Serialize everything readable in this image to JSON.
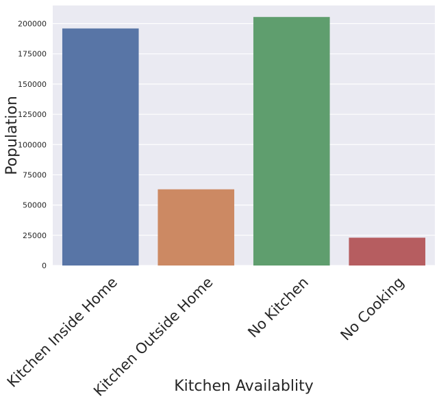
{
  "chart_data": {
    "type": "bar",
    "categories": [
      "Kitchen Inside Home",
      "Kitchen Outside Home",
      "No Kitchen",
      "No Cooking"
    ],
    "values": [
      196000,
      63000,
      205500,
      23000
    ],
    "colors": [
      "#5875a6",
      "#cc8963",
      "#5f9e6e",
      "#b65d60"
    ],
    "xlabel": "Kitchen Availablity",
    "ylabel": "Population",
    "ylim": [
      0,
      215000
    ],
    "yticks": [
      0,
      25000,
      50000,
      75000,
      100000,
      125000,
      150000,
      175000,
      200000
    ],
    "ytick_labels": [
      "0",
      "25000",
      "50000",
      "75000",
      "100000",
      "125000",
      "150000",
      "175000",
      "200000"
    ],
    "grid": true,
    "background": "#eaeaf2",
    "grid_color": "#ffffff"
  }
}
